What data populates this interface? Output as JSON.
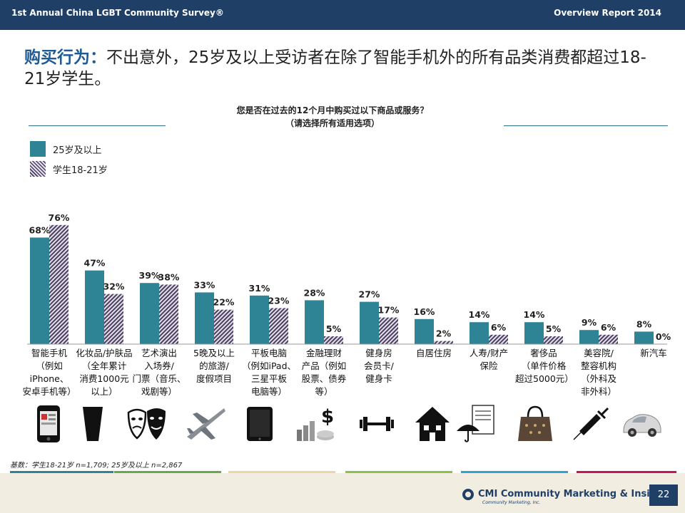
{
  "header": {
    "left": "1st Annual China LGBT Community Survey®",
    "right": "Overview Report 2014"
  },
  "headline": {
    "bold": "购买行为：",
    "rest": "不出意外，25岁及以上受访者在除了智能手机外的所有品类消费都超过18-21岁学生。"
  },
  "question": {
    "line1": "您是否在过去的12个月中购买过以下商品或服务？",
    "line2": "（请选择所有适用选项）"
  },
  "colors": {
    "solid": "#2e8494",
    "hatch_dark": "#4a3f5e",
    "header_bg": "#1f3f66",
    "accent": "#1f5a95"
  },
  "chart_data": {
    "type": "bar",
    "categories": [
      "智能手机（例如iPhone、安卓手机等）",
      "化妆品/护肤品（全年累计消费1000元以上）",
      "艺术演出入场券/门票（音乐、戏剧等）",
      "5晚及以上的旅游/度假项目",
      "平板电脑（例如iPad、三星平板电脑等）",
      "金融理财产品（例如股票、债券等）",
      "健身房会员卡/健身卡",
      "自居住房",
      "人寿/财产保险",
      "奢侈品（单件价格超过5000元）",
      "美容院/整容机构（外科及非外科）",
      "新汽车"
    ],
    "series": [
      {
        "name": "25岁及以上",
        "values": [
          68,
          47,
          39,
          33,
          31,
          28,
          27,
          16,
          14,
          14,
          9,
          8
        ]
      },
      {
        "name": "学生18-21岁",
        "values": [
          76,
          32,
          38,
          22,
          23,
          5,
          17,
          2,
          6,
          5,
          6,
          0
        ]
      }
    ],
    "value_labels": [
      [
        "68%",
        "47%",
        "39%",
        "33%",
        "31%",
        "28%",
        "27%",
        "16%",
        "14%",
        "14%",
        "9%",
        "8%"
      ],
      [
        "76%",
        "32%",
        "38%",
        "22%",
        "23%",
        "5%",
        "17%",
        "2%",
        "6%",
        "5%",
        "6%",
        "0%"
      ]
    ],
    "ylim": [
      0,
      100
    ],
    "legend_position": "top-left",
    "grid": false
  },
  "category_lines": [
    [
      "智能手机",
      "（例如iPhone、",
      "安卓手机等）"
    ],
    [
      "化妆品/护肤品",
      "（全年累计",
      "消费1000元",
      "以上）"
    ],
    [
      "艺术演出",
      "入场券/",
      "门票（音乐、",
      "戏剧等）"
    ],
    [
      "5晚及以上",
      "的旅游/",
      "度假项目"
    ],
    [
      "平板电脑",
      "（例如iPad、",
      "三星平板",
      "电脑等）"
    ],
    [
      "金融理财",
      "产品（例如",
      "股票、债券",
      "等）"
    ],
    [
      "健身房",
      "会员卡/",
      "健身卡"
    ],
    [
      "自居住房"
    ],
    [
      "人寿/财产",
      "保险"
    ],
    [
      "奢侈品",
      "（单件价格",
      "超过5000元）"
    ],
    [
      "美容院/",
      "整容机构",
      "（外科及",
      "非外科）"
    ],
    [
      "新汽车"
    ]
  ],
  "icons": [
    "smartphone-icon",
    "cosmetic-tube-icon",
    "theater-masks-icon",
    "airplane-icon",
    "tablet-icon",
    "finance-coins-icon",
    "dumbbell-icon",
    "house-icon",
    "insurance-umbrella-icon",
    "handbag-icon",
    "syringe-icon",
    "car-icon"
  ],
  "base_note": "基数：学生18-21岁 n=1,709; 25岁及以上 n=2,867",
  "footer": {
    "logo_main": "CMI Community Marketing & Insights",
    "logo_sub": "Community Marketing, Inc.",
    "page": "22"
  }
}
